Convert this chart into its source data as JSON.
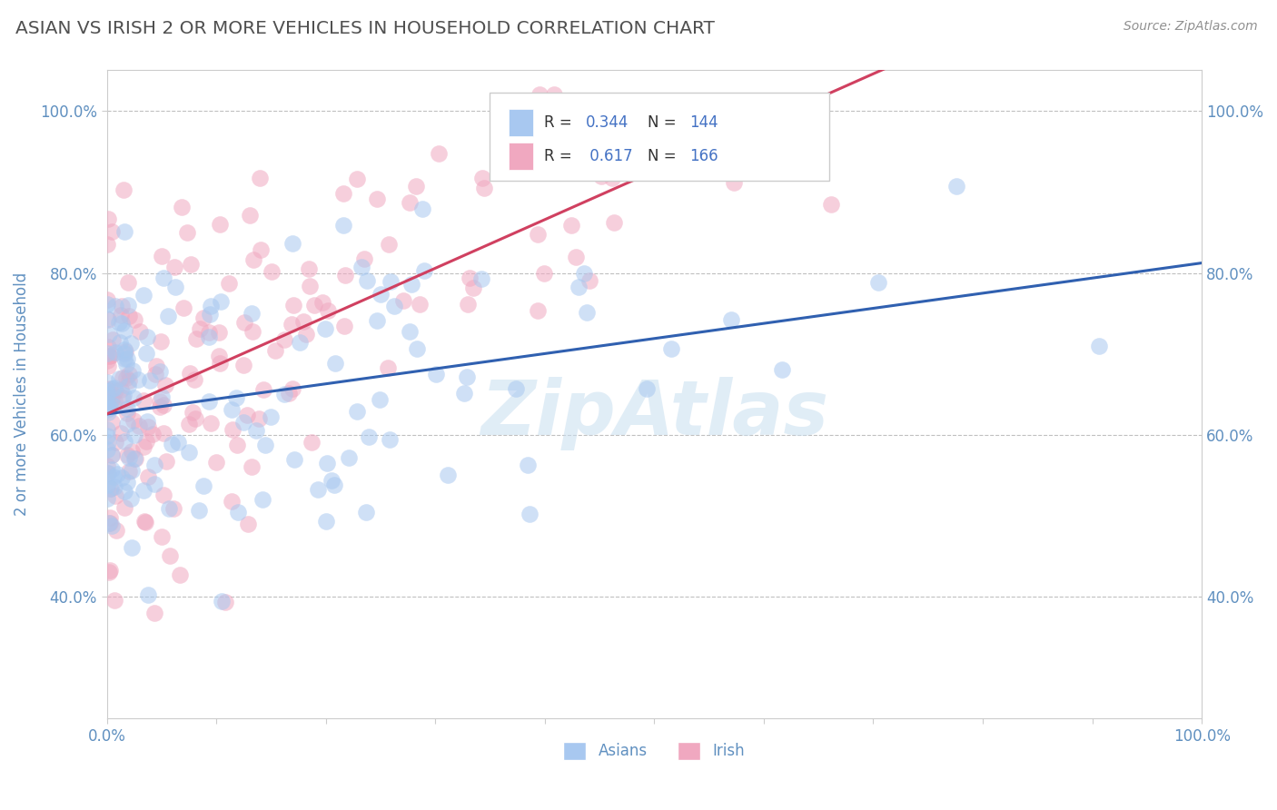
{
  "title": "ASIAN VS IRISH 2 OR MORE VEHICLES IN HOUSEHOLD CORRELATION CHART",
  "source": "Source: ZipAtlas.com",
  "ylabel": "2 or more Vehicles in Household",
  "xlim": [
    0.0,
    1.0
  ],
  "ylim": [
    0.25,
    1.05
  ],
  "asian_R": 0.344,
  "asian_N": 144,
  "irish_R": 0.617,
  "irish_N": 166,
  "asian_color": "#a8c8f0",
  "irish_color": "#f0a8c0",
  "asian_line_color": "#3060b0",
  "irish_line_color": "#d04060",
  "background_color": "#ffffff",
  "grid_color": "#c0c0c0",
  "watermark_text": "ZipAtlas",
  "watermark_color": "#c8dff0",
  "title_color": "#505050",
  "axis_label_color": "#6090c0",
  "tick_label_color": "#6090c0",
  "source_color": "#909090"
}
